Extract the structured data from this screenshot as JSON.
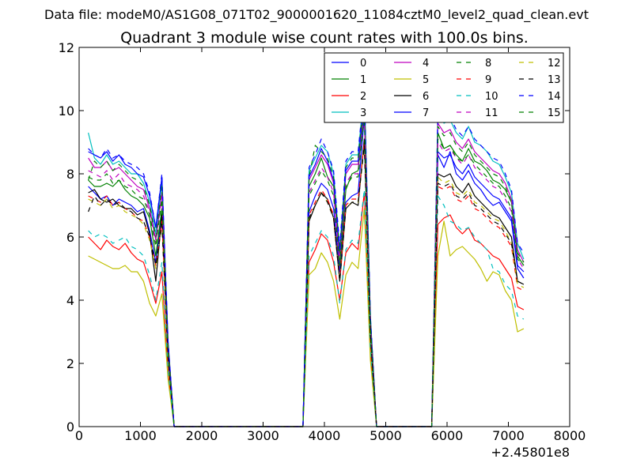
{
  "figure": {
    "suptitle": "Data file: modeM0/AS1G08_071T02_9000001620_11084cztM0_level2_quad_clean.evt"
  },
  "chart_data": {
    "type": "line",
    "title": "Quadrant 3 module wise count rates with 100.0s bins.",
    "xlabel": "",
    "ylabel": "",
    "x_offset_label": "+2.45801e8",
    "xlim": [
      0,
      8000
    ],
    "ylim": [
      0,
      12
    ],
    "xticks": [
      0,
      1000,
      2000,
      3000,
      4000,
      5000,
      6000,
      7000,
      8000
    ],
    "yticks": [
      0,
      2,
      4,
      6,
      8,
      10,
      12
    ],
    "grid": false,
    "legend": {
      "placement": "top-right",
      "ncol": 4
    },
    "x": [
      150,
      250,
      350,
      450,
      550,
      650,
      750,
      850,
      950,
      1050,
      1150,
      1250,
      1350,
      1450,
      1550,
      1650,
      1750,
      1850,
      1950,
      2050,
      2150,
      2250,
      2350,
      2450,
      2550,
      2650,
      2750,
      2850,
      2950,
      3050,
      3150,
      3250,
      3350,
      3450,
      3550,
      3650,
      3750,
      3850,
      3950,
      4050,
      4150,
      4250,
      4350,
      4450,
      4550,
      4650,
      4750,
      4850,
      4950,
      5050,
      5150,
      5250,
      5350,
      5450,
      5550,
      5650,
      5750,
      5850,
      5950,
      6050,
      6150,
      6250,
      6350,
      6450,
      6550,
      6650,
      6750,
      6850,
      6950,
      7050,
      7150,
      7250
    ],
    "series": [
      {
        "name": "0",
        "color": "#0000ff",
        "dash": "solid",
        "values": [
          7.6,
          7.4,
          7.2,
          7.3,
          7.0,
          7.2,
          7.1,
          7.0,
          6.8,
          6.9,
          6.2,
          5.2,
          6.8,
          2.2,
          0,
          0,
          0,
          0,
          0,
          0,
          0,
          0,
          0,
          0,
          0,
          0,
          0,
          0,
          0,
          0,
          0,
          0,
          0,
          0,
          0,
          0,
          6.8,
          7.3,
          7.7,
          7.5,
          6.9,
          4.9,
          7.1,
          7.3,
          7.4,
          9.8,
          3.0,
          0,
          0,
          0,
          0,
          0,
          0,
          0,
          0,
          0,
          0,
          8.6,
          8.2,
          8.7,
          8.0,
          7.8,
          8.1,
          7.7,
          7.5,
          7.2,
          7.0,
          7.1,
          6.8,
          6.5,
          5.0,
          4.7
        ]
      },
      {
        "name": "1",
        "color": "#008000",
        "dash": "solid",
        "values": [
          7.8,
          7.6,
          7.6,
          7.7,
          7.6,
          7.8,
          7.5,
          7.3,
          7.2,
          7.0,
          6.6,
          5.4,
          6.9,
          2.4,
          0,
          0,
          0,
          0,
          0,
          0,
          0,
          0,
          0,
          0,
          0,
          0,
          0,
          0,
          0,
          0,
          0,
          0,
          0,
          0,
          0,
          0,
          7.6,
          8.0,
          8.5,
          7.9,
          7.6,
          5.1,
          7.5,
          8.0,
          8.1,
          10.0,
          3.2,
          0,
          0,
          0,
          0,
          0,
          0,
          0,
          0,
          0,
          0,
          9.3,
          8.8,
          8.9,
          8.6,
          8.4,
          8.8,
          8.4,
          8.3,
          8.1,
          7.8,
          7.7,
          7.5,
          7.1,
          5.4,
          5.1
        ]
      },
      {
        "name": "2",
        "color": "#ff0000",
        "dash": "solid",
        "values": [
          6.0,
          5.8,
          5.6,
          5.9,
          5.7,
          5.6,
          5.8,
          5.5,
          5.3,
          5.2,
          4.6,
          3.9,
          4.9,
          1.7,
          0,
          0,
          0,
          0,
          0,
          0,
          0,
          0,
          0,
          0,
          0,
          0,
          0,
          0,
          0,
          0,
          0,
          0,
          0,
          0,
          0,
          0,
          5.2,
          5.6,
          6.1,
          5.9,
          5.2,
          4.0,
          5.5,
          5.8,
          5.6,
          7.4,
          2.4,
          0,
          0,
          0,
          0,
          0,
          0,
          0,
          0,
          0,
          0,
          6.4,
          6.6,
          6.7,
          6.3,
          6.1,
          6.3,
          5.9,
          5.8,
          5.6,
          5.4,
          5.3,
          5.0,
          4.7,
          3.8,
          3.7
        ]
      },
      {
        "name": "3",
        "color": "#00bfbf",
        "dash": "solid",
        "values": [
          9.3,
          8.5,
          8.3,
          8.6,
          8.3,
          8.4,
          8.2,
          8.0,
          8.0,
          7.7,
          7.1,
          6.1,
          7.7,
          2.6,
          0,
          0,
          0,
          0,
          0,
          0,
          0,
          0,
          0,
          0,
          0,
          0,
          0,
          0,
          0,
          0,
          0,
          0,
          0,
          0,
          0,
          0,
          8.1,
          8.5,
          8.9,
          8.7,
          8.0,
          5.6,
          8.3,
          8.6,
          8.6,
          10.7,
          3.5,
          0,
          0,
          0,
          0,
          0,
          0,
          0,
          0,
          0,
          0,
          10.0,
          9.6,
          9.7,
          9.3,
          9.1,
          9.5,
          9.0,
          8.9,
          8.7,
          8.4,
          8.3,
          7.9,
          7.4,
          5.8,
          5.3
        ]
      },
      {
        "name": "4",
        "color": "#bf00bf",
        "dash": "solid",
        "values": [
          8.5,
          8.2,
          8.2,
          8.4,
          8.1,
          8.2,
          8.0,
          7.8,
          7.6,
          7.5,
          6.9,
          5.9,
          7.4,
          2.6,
          0,
          0,
          0,
          0,
          0,
          0,
          0,
          0,
          0,
          0,
          0,
          0,
          0,
          0,
          0,
          0,
          0,
          0,
          0,
          0,
          0,
          0,
          7.8,
          8.2,
          8.6,
          8.3,
          7.7,
          5.4,
          8.0,
          8.3,
          8.3,
          10.3,
          3.4,
          0,
          0,
          0,
          0,
          0,
          0,
          0,
          0,
          0,
          0,
          9.6,
          9.3,
          9.4,
          9.0,
          8.8,
          9.1,
          8.7,
          8.5,
          8.3,
          8.1,
          8.0,
          7.7,
          7.2,
          5.6,
          5.2
        ]
      },
      {
        "name": "5",
        "color": "#bfbf00",
        "dash": "solid",
        "values": [
          5.4,
          5.3,
          5.2,
          5.1,
          5.0,
          5.0,
          5.1,
          4.9,
          4.9,
          4.6,
          3.9,
          3.5,
          4.2,
          1.5,
          0,
          0,
          0,
          0,
          0,
          0,
          0,
          0,
          0,
          0,
          0,
          0,
          0,
          0,
          0,
          0,
          0,
          0,
          0,
          0,
          0,
          0,
          4.8,
          5.0,
          5.5,
          5.2,
          4.6,
          3.4,
          4.8,
          5.2,
          5.0,
          6.9,
          2.1,
          0,
          0,
          0,
          0,
          0,
          0,
          0,
          0,
          0,
          0,
          5.4,
          6.5,
          5.4,
          5.6,
          5.7,
          5.5,
          5.3,
          5.0,
          4.6,
          4.9,
          4.8,
          4.3,
          4.0,
          3.0,
          3.1
        ]
      },
      {
        "name": "6",
        "color": "#000000",
        "dash": "solid",
        "values": [
          7.4,
          7.5,
          7.2,
          7.1,
          7.2,
          7.0,
          6.9,
          6.9,
          6.7,
          6.8,
          6.1,
          4.6,
          6.7,
          2.2,
          0,
          0,
          0,
          0,
          0,
          0,
          0,
          0,
          0,
          0,
          0,
          0,
          0,
          0,
          0,
          0,
          0,
          0,
          0,
          0,
          0,
          0,
          6.5,
          7.0,
          7.4,
          7.2,
          6.6,
          4.6,
          6.9,
          7.1,
          7.0,
          9.1,
          2.9,
          0,
          0,
          0,
          0,
          0,
          0,
          0,
          0,
          0,
          0,
          8.0,
          7.9,
          8.0,
          7.6,
          7.4,
          7.7,
          7.3,
          7.1,
          6.9,
          6.7,
          6.6,
          6.3,
          6.0,
          4.6,
          4.5
        ]
      },
      {
        "name": "7",
        "color": "#0000ff",
        "dash": "solid",
        "values": [
          8.7,
          8.6,
          8.5,
          8.7,
          8.4,
          8.6,
          8.3,
          8.2,
          8.0,
          7.9,
          7.3,
          6.3,
          7.9,
          2.7,
          0,
          0,
          0,
          0,
          0,
          0,
          0,
          0,
          0,
          0,
          0,
          0,
          0,
          0,
          0,
          0,
          0,
          0,
          0,
          0,
          0,
          0,
          7.9,
          8.3,
          8.8,
          8.4,
          7.8,
          5.5,
          8.1,
          8.4,
          8.4,
          10.4,
          3.4,
          0,
          0,
          0,
          0,
          0,
          0,
          0,
          0,
          0,
          0,
          8.7,
          8.5,
          8.6,
          8.2,
          8.0,
          8.3,
          7.9,
          7.7,
          7.5,
          7.3,
          7.2,
          6.9,
          6.6,
          5.1,
          4.9
        ]
      },
      {
        "name": "8",
        "color": "#008000",
        "dash": "dashed",
        "values": [
          7.8,
          8.4,
          8.2,
          8.4,
          8.1,
          8.3,
          8.1,
          7.9,
          7.8,
          7.6,
          7.0,
          6.0,
          7.6,
          2.6,
          0,
          0,
          0,
          0,
          0,
          0,
          0,
          0,
          0,
          0,
          0,
          0,
          0,
          0,
          0,
          0,
          0,
          0,
          0,
          0,
          0,
          0,
          7.9,
          8.9,
          8.7,
          8.5,
          7.9,
          5.5,
          8.2,
          8.5,
          8.5,
          10.5,
          3.4,
          0,
          0,
          0,
          0,
          0,
          0,
          0,
          0,
          0,
          0,
          9.5,
          9.2,
          9.3,
          8.9,
          8.7,
          9.0,
          8.6,
          8.4,
          8.2,
          8.0,
          7.9,
          7.6,
          7.1,
          5.5,
          5.2
        ]
      },
      {
        "name": "9",
        "color": "#ff0000",
        "dash": "dashed",
        "values": [
          7.3,
          7.2,
          7.1,
          7.3,
          7.0,
          7.1,
          6.9,
          6.8,
          6.6,
          6.5,
          6.0,
          5.1,
          6.5,
          2.2,
          0,
          0,
          0,
          0,
          0,
          0,
          0,
          0,
          0,
          0,
          0,
          0,
          0,
          0,
          0,
          0,
          0,
          0,
          0,
          0,
          0,
          0,
          6.7,
          7.1,
          7.5,
          7.2,
          6.7,
          4.7,
          7.0,
          7.2,
          7.2,
          9.0,
          2.9,
          0,
          0,
          0,
          0,
          0,
          0,
          0,
          0,
          0,
          0,
          7.6,
          7.5,
          7.6,
          7.2,
          7.1,
          7.3,
          6.9,
          6.8,
          6.6,
          6.4,
          6.3,
          6.0,
          5.7,
          4.4,
          4.3
        ]
      },
      {
        "name": "10",
        "color": "#00bfbf",
        "dash": "dashed",
        "values": [
          6.2,
          6.0,
          6.1,
          6.0,
          5.8,
          5.9,
          6.0,
          5.7,
          5.6,
          5.4,
          4.8,
          4.0,
          5.2,
          1.8,
          0,
          0,
          0,
          0,
          0,
          0,
          0,
          0,
          0,
          0,
          0,
          0,
          0,
          0,
          0,
          0,
          0,
          0,
          0,
          0,
          0,
          0,
          5.4,
          5.8,
          6.2,
          6.0,
          5.4,
          3.9,
          5.6,
          5.9,
          5.8,
          7.5,
          2.5,
          0,
          0,
          0,
          0,
          0,
          0,
          0,
          0,
          0,
          0,
          7.3,
          7.0,
          6.5,
          6.4,
          6.2,
          6.3,
          6.0,
          5.8,
          5.6,
          5.0,
          4.9,
          4.5,
          4.3,
          3.5,
          3.4
        ]
      },
      {
        "name": "11",
        "color": "#bf00bf",
        "dash": "dashed",
        "values": [
          8.1,
          8.0,
          7.9,
          8.1,
          7.8,
          8.0,
          7.7,
          7.6,
          7.5,
          7.3,
          6.8,
          5.8,
          7.3,
          2.5,
          0,
          0,
          0,
          0,
          0,
          0,
          0,
          0,
          0,
          0,
          0,
          0,
          0,
          0,
          0,
          0,
          0,
          0,
          0,
          0,
          0,
          0,
          7.4,
          7.8,
          8.2,
          7.9,
          7.4,
          5.2,
          7.7,
          8.0,
          8.0,
          9.9,
          3.2,
          0,
          0,
          0,
          0,
          0,
          0,
          0,
          0,
          0,
          0,
          9.0,
          8.7,
          8.8,
          8.5,
          8.3,
          8.6,
          8.2,
          8.0,
          7.8,
          7.6,
          7.5,
          7.2,
          6.8,
          5.3,
          5.0
        ]
      },
      {
        "name": "12",
        "color": "#bfbf00",
        "dash": "dashed",
        "values": [
          7.2,
          7.1,
          7.0,
          7.2,
          6.9,
          7.0,
          6.8,
          6.7,
          6.6,
          6.4,
          5.9,
          5.0,
          6.4,
          2.2,
          0,
          0,
          0,
          0,
          0,
          0,
          0,
          0,
          0,
          0,
          0,
          0,
          0,
          0,
          0,
          0,
          0,
          0,
          0,
          0,
          0,
          0,
          6.6,
          7.0,
          7.4,
          7.1,
          6.6,
          4.6,
          6.9,
          7.1,
          7.1,
          8.9,
          2.9,
          0,
          0,
          0,
          0,
          0,
          0,
          0,
          0,
          0,
          0,
          7.9,
          7.7,
          7.8,
          7.4,
          7.3,
          7.5,
          7.1,
          7.0,
          6.8,
          6.6,
          6.5,
          6.2,
          5.8,
          4.5,
          4.4
        ]
      },
      {
        "name": "13",
        "color": "#000000",
        "dash": "dashed",
        "values": [
          6.8,
          7.3,
          7.0,
          7.2,
          7.0,
          7.1,
          6.9,
          6.8,
          6.6,
          6.5,
          6.0,
          5.1,
          6.4,
          2.2,
          0,
          0,
          0,
          0,
          0,
          0,
          0,
          0,
          0,
          0,
          0,
          0,
          0,
          0,
          0,
          0,
          0,
          0,
          0,
          0,
          0,
          0,
          6.6,
          7.0,
          7.4,
          7.1,
          6.6,
          4.6,
          6.9,
          7.1,
          7.1,
          8.9,
          2.9,
          0,
          0,
          0,
          0,
          0,
          0,
          0,
          0,
          0,
          0,
          7.7,
          7.6,
          7.7,
          7.3,
          7.2,
          7.4,
          7.0,
          6.9,
          6.7,
          6.5,
          6.4,
          6.1,
          5.8,
          4.6,
          4.5
        ]
      },
      {
        "name": "14",
        "color": "#0000ff",
        "dash": "dashed",
        "values": [
          8.8,
          8.6,
          8.5,
          8.8,
          8.5,
          8.6,
          8.4,
          8.3,
          8.2,
          8.0,
          7.4,
          6.3,
          8.0,
          2.7,
          0,
          0,
          0,
          0,
          0,
          0,
          0,
          0,
          0,
          0,
          0,
          0,
          0,
          0,
          0,
          0,
          0,
          0,
          0,
          0,
          0,
          0,
          8.2,
          8.6,
          9.1,
          8.7,
          8.1,
          5.7,
          8.4,
          8.7,
          8.7,
          10.7,
          3.5,
          0,
          0,
          0,
          0,
          0,
          0,
          0,
          0,
          0,
          0,
          10.0,
          9.8,
          9.8,
          9.4,
          9.2,
          9.5,
          9.1,
          8.9,
          8.7,
          8.5,
          8.4,
          8.0,
          7.5,
          5.8,
          5.5
        ]
      },
      {
        "name": "15",
        "color": "#008000",
        "dash": "dashed",
        "values": [
          7.9,
          7.8,
          7.8,
          8.0,
          7.7,
          7.8,
          7.6,
          7.5,
          7.3,
          7.2,
          6.7,
          5.7,
          7.2,
          2.4,
          0,
          0,
          0,
          0,
          0,
          0,
          0,
          0,
          0,
          0,
          0,
          0,
          0,
          0,
          0,
          0,
          0,
          0,
          0,
          0,
          0,
          0,
          7.3,
          7.7,
          8.1,
          7.8,
          7.3,
          5.1,
          7.6,
          7.9,
          7.9,
          9.8,
          3.2,
          0,
          0,
          0,
          0,
          0,
          0,
          0,
          0,
          0,
          0,
          9.1,
          8.8,
          8.9,
          8.5,
          8.4,
          8.6,
          8.3,
          8.1,
          7.9,
          7.7,
          7.6,
          7.3,
          6.9,
          5.3,
          5.1
        ]
      }
    ]
  }
}
